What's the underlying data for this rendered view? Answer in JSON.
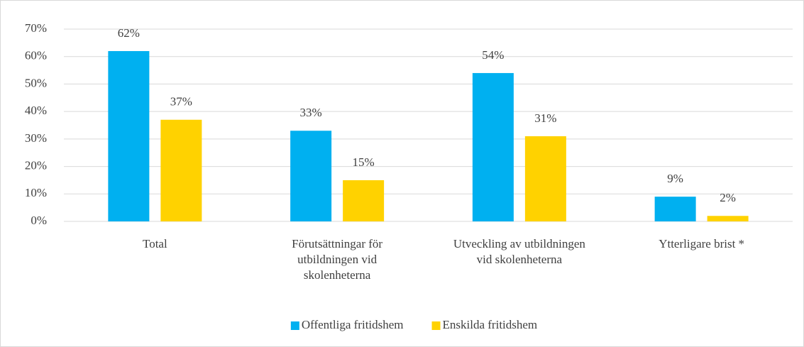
{
  "chart_data": {
    "type": "bar",
    "categories": [
      "Total",
      "Förutsättningar för utbildningen vid skolenheterna",
      "Utveckling av utbildningen vid skolenheterna",
      "Ytterligare brist *"
    ],
    "series": [
      {
        "name": "Offentliga fritidshem",
        "color": "#00b0f0",
        "values": [
          62,
          33,
          54,
          9
        ],
        "value_labels": [
          "62%",
          "33%",
          "54%",
          "9%"
        ]
      },
      {
        "name": "Enskilda fritidshem",
        "color": "#ffd200",
        "values": [
          37,
          15,
          31,
          2
        ],
        "value_labels": [
          "37%",
          "15%",
          "31%",
          "2%"
        ]
      }
    ],
    "ylim": [
      0,
      70
    ],
    "yticks": [
      {
        "value": 0,
        "label": "0%"
      },
      {
        "value": 10,
        "label": "10%"
      },
      {
        "value": 20,
        "label": "20%"
      },
      {
        "value": 30,
        "label": "30%"
      },
      {
        "value": 40,
        "label": "40%"
      },
      {
        "value": 50,
        "label": "50%"
      },
      {
        "value": 60,
        "label": "60%"
      },
      {
        "value": 70,
        "label": "70%"
      }
    ],
    "grid": true,
    "legend": "bottom"
  }
}
